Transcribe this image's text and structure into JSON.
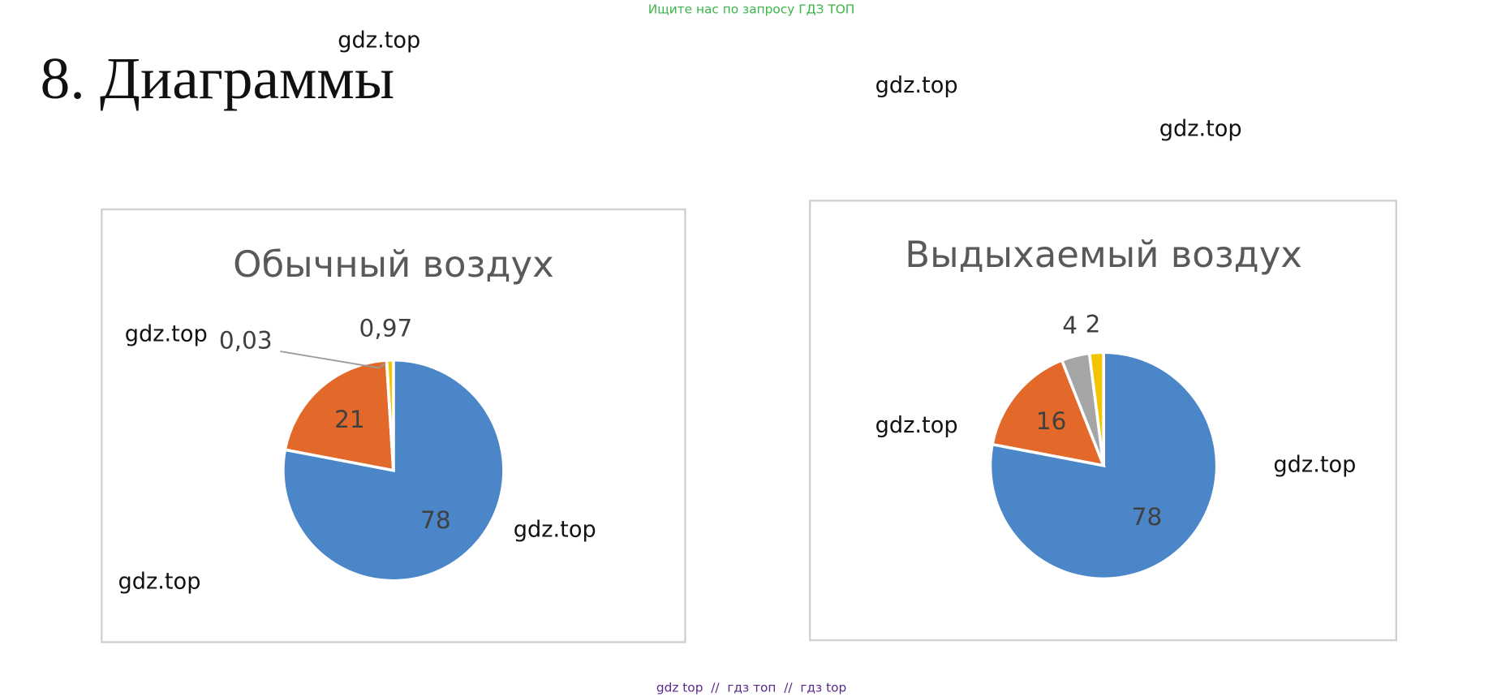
{
  "banner": "Ищите нас по запросу ГДЗ ТОП",
  "heading": "8. Диаграммы",
  "watermarks": [
    "gdz.top",
    "gdz.top",
    "gdz.top",
    "gdz.top",
    "gdz.top",
    "gdz.top",
    "gdz.top",
    "gdz.top"
  ],
  "footer": "gdz top  //  гдз топ  //  гдз top",
  "chart_data": [
    {
      "type": "pie",
      "title": "Обычный воздух",
      "values": [
        78,
        21,
        0.03,
        0.97
      ],
      "value_labels": [
        "78",
        "21",
        "0,03",
        "0,97"
      ],
      "colors": [
        "#4a86c8",
        "#e2692a",
        "#a5a5a5",
        "#f2c500"
      ]
    },
    {
      "type": "pie",
      "title": "Выдыхаемый воздух",
      "values": [
        78,
        16,
        4,
        2
      ],
      "value_labels": [
        "78",
        "16",
        "4",
        "2"
      ],
      "colors": [
        "#4a86c8",
        "#e2692a",
        "#a5a5a5",
        "#f2c500"
      ]
    }
  ]
}
